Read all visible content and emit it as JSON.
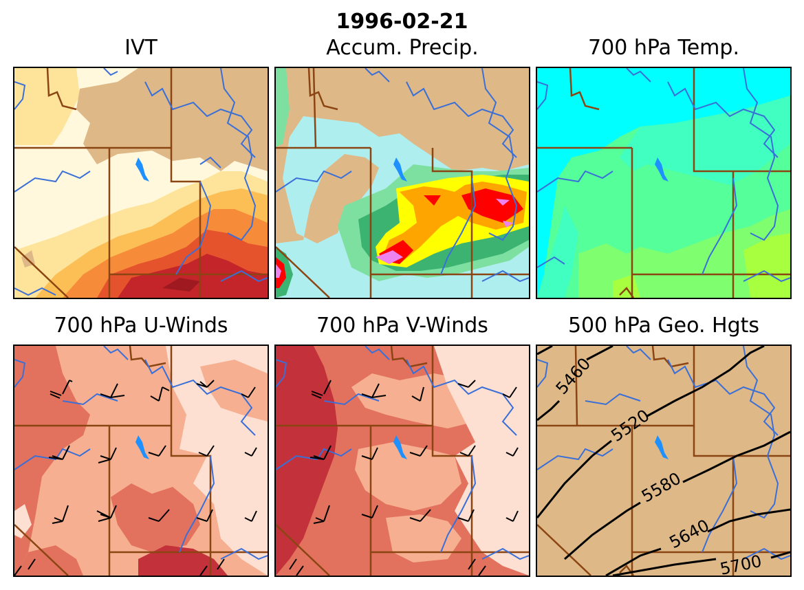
{
  "figure": {
    "date_title": "1996-02-21",
    "panels": [
      {
        "id": "ivt",
        "title": "IVT"
      },
      {
        "id": "precip",
        "title": "Accum. Precip."
      },
      {
        "id": "temp",
        "title": "700 hPa Temp."
      },
      {
        "id": "uwind",
        "title": "700 hPa U-Winds"
      },
      {
        "id": "vwind",
        "title": "700 hPa V-Winds"
      },
      {
        "id": "geo",
        "title": "500 hPa Geo. Hgts"
      }
    ],
    "contour_labels": [
      "5460",
      "5520",
      "5580",
      "5640",
      "5700"
    ]
  },
  "colors": {
    "land": "#deb887",
    "state_border": "#8b4513",
    "river": "#3a6fd8",
    "lake": "#1e90ff",
    "ivt": [
      "#fff8dc",
      "#fde49a",
      "#fcbf55",
      "#f68c3a",
      "#e5532c",
      "#c4252a",
      "#9e1a20"
    ],
    "precip": [
      "#afeeee",
      "#7ee0a0",
      "#3cb371",
      "#ffff00",
      "#ffa500",
      "#ff0000",
      "#ee82ee"
    ],
    "temp": [
      "#00ffff",
      "#40ffc0",
      "#55ff99",
      "#7fff70",
      "#a8ff40"
    ],
    "winds": [
      "#fde0d2",
      "#f6b091",
      "#e2725e",
      "#c3323a"
    ]
  }
}
